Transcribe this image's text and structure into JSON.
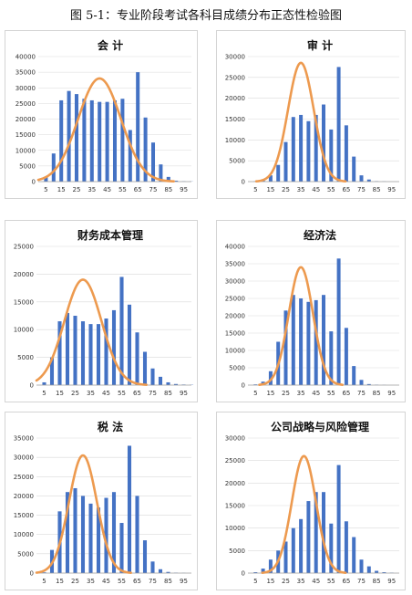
{
  "figure": {
    "title": "图 5-1：专业阶段考试各科目成绩分布正态性检验图"
  },
  "colors": {
    "bar": "#4472C4",
    "curve": "#ED9A4F",
    "axis": "#9a9a9a",
    "grid": "#d9d9d9"
  },
  "chart_data": [
    {
      "type": "bar",
      "title": "会  计",
      "x": [
        5,
        10,
        15,
        20,
        25,
        30,
        35,
        40,
        45,
        50,
        55,
        60,
        65,
        70,
        75,
        80,
        85,
        90,
        95,
        100
      ],
      "values": [
        1500,
        9000,
        26000,
        29000,
        28000,
        26500,
        26000,
        25500,
        25500,
        26000,
        26500,
        16500,
        35000,
        20500,
        12500,
        5500,
        1500,
        300,
        100,
        50
      ],
      "curve": {
        "type": "normal",
        "mean": 40,
        "sd": 14,
        "peak": 33000
      },
      "xticks": [
        5,
        15,
        25,
        35,
        45,
        55,
        65,
        75,
        85,
        95
      ],
      "yticks": [
        0,
        5000,
        10000,
        15000,
        20000,
        25000,
        30000,
        35000,
        40000
      ],
      "ylim": [
        0,
        40000
      ],
      "xlim": [
        0,
        100
      ]
    },
    {
      "type": "bar",
      "title": "审  计",
      "x": [
        5,
        10,
        15,
        20,
        25,
        30,
        35,
        40,
        45,
        50,
        55,
        60,
        65,
        70,
        75,
        80,
        85,
        90,
        95,
        100
      ],
      "values": [
        100,
        300,
        1500,
        4000,
        9500,
        15500,
        16000,
        14500,
        16000,
        18500,
        12500,
        27500,
        13500,
        6000,
        1500,
        500,
        100,
        50,
        0,
        0
      ],
      "curve": {
        "type": "normal",
        "mean": 35,
        "sd": 8.5,
        "peak": 28500
      },
      "xticks": [
        5,
        15,
        25,
        35,
        45,
        55,
        65,
        75,
        85,
        95
      ],
      "yticks": [
        0,
        5000,
        10000,
        15000,
        20000,
        25000,
        30000
      ],
      "ylim": [
        0,
        30000
      ],
      "xlim": [
        0,
        100
      ]
    },
    {
      "type": "bar",
      "title": "财务成本管理",
      "x": [
        5,
        10,
        15,
        20,
        25,
        30,
        35,
        40,
        45,
        50,
        55,
        60,
        65,
        70,
        75,
        80,
        85,
        90,
        95,
        100
      ],
      "values": [
        500,
        5000,
        11500,
        13000,
        12500,
        11500,
        11000,
        11000,
        12000,
        13500,
        19500,
        14500,
        9500,
        6000,
        3000,
        1500,
        500,
        200,
        100,
        50
      ],
      "curve": {
        "type": "normal",
        "mean": 30,
        "sd": 12,
        "peak": 19000
      },
      "xticks": [
        5,
        15,
        25,
        35,
        45,
        55,
        65,
        75,
        85,
        95
      ],
      "yticks": [
        0,
        5000,
        10000,
        15000,
        20000,
        25000
      ],
      "ylim": [
        0,
        25000
      ],
      "xlim": [
        0,
        100
      ]
    },
    {
      "type": "bar",
      "title": "经济法",
      "x": [
        5,
        10,
        15,
        20,
        25,
        30,
        35,
        40,
        45,
        50,
        55,
        60,
        65,
        70,
        75,
        80,
        85,
        90,
        95,
        100
      ],
      "values": [
        200,
        1000,
        4000,
        12500,
        21500,
        26000,
        25000,
        24000,
        24500,
        26000,
        15500,
        36500,
        16500,
        5500,
        1500,
        300,
        100,
        50,
        0,
        0
      ],
      "curve": {
        "type": "normal",
        "mean": 35,
        "sd": 8,
        "peak": 34000
      },
      "xticks": [
        5,
        15,
        25,
        35,
        45,
        55,
        65,
        75,
        85,
        95
      ],
      "yticks": [
        0,
        5000,
        10000,
        15000,
        20000,
        25000,
        30000,
        35000,
        40000
      ],
      "ylim": [
        0,
        40000
      ],
      "xlim": [
        0,
        100
      ]
    },
    {
      "type": "bar",
      "title": "税  法",
      "x": [
        5,
        10,
        15,
        20,
        25,
        30,
        35,
        40,
        45,
        50,
        55,
        60,
        65,
        70,
        75,
        80,
        85,
        90,
        95,
        100
      ],
      "values": [
        200,
        6000,
        16000,
        21000,
        22000,
        20000,
        18000,
        17000,
        19500,
        21000,
        13000,
        33000,
        20000,
        8500,
        3000,
        1000,
        300,
        100,
        50,
        0
      ],
      "curve": {
        "type": "normal",
        "mean": 30,
        "sd": 9,
        "peak": 30500
      },
      "xticks": [
        5,
        15,
        25,
        35,
        45,
        55,
        65,
        75,
        85,
        95
      ],
      "yticks": [
        0,
        5000,
        10000,
        15000,
        20000,
        25000,
        30000,
        35000
      ],
      "ylim": [
        0,
        35000
      ],
      "xlim": [
        0,
        100
      ]
    },
    {
      "type": "bar",
      "title": "公司战略与风险管理",
      "x": [
        5,
        10,
        15,
        20,
        25,
        30,
        35,
        40,
        45,
        50,
        55,
        60,
        65,
        70,
        75,
        80,
        85,
        90,
        95,
        100
      ],
      "values": [
        200,
        1000,
        3000,
        5000,
        7000,
        10000,
        12000,
        16000,
        18000,
        18000,
        11000,
        24000,
        11500,
        8000,
        3000,
        1500,
        500,
        200,
        100,
        0
      ],
      "curve": {
        "type": "normal",
        "mean": 37,
        "sd": 8,
        "peak": 26000
      },
      "xticks": [
        5,
        15,
        25,
        35,
        45,
        55,
        65,
        75,
        85,
        95
      ],
      "yticks": [
        0,
        5000,
        10000,
        15000,
        20000,
        25000,
        30000
      ],
      "ylim": [
        0,
        30000
      ],
      "xlim": [
        0,
        100
      ]
    }
  ]
}
